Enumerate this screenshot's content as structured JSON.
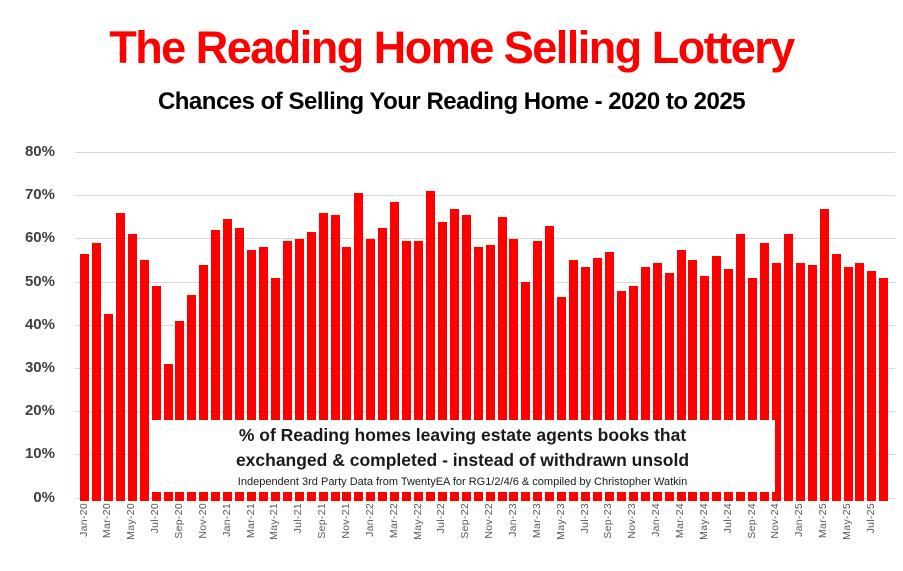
{
  "page": {
    "title": "The Reading Home Selling Lottery",
    "subtitle": "Chances of Selling Your Reading Home - 2020 to 2025"
  },
  "colors": {
    "bar": "#fe0000",
    "title": "#fe0000",
    "subtitle": "#000000",
    "gridline": "#d9d9d9",
    "y_axis_label": "#404040",
    "x_axis_label": "#595959",
    "annotation_background": "#ffffff"
  },
  "annotation": {
    "line1": "% of Reading homes leaving estate agents books that",
    "line2": "exchanged & completed - instead of withdrawn unsold",
    "line3": "Independent 3rd Party Data from TwentyEA for RG1/2/4/6 & compiled by Christopher Watkin"
  },
  "chart_data": {
    "type": "bar",
    "title": "The Reading Home Selling Lottery",
    "subtitle": "Chances of Selling Your Reading Home - 2020 to 2025",
    "unit": "%",
    "ylim": [
      0,
      80
    ],
    "y_tick_step": 10,
    "y_tick_labels": [
      "80%",
      "70%",
      "60%",
      "50%",
      "40%",
      "30%",
      "20%",
      "10%",
      "0%"
    ],
    "grid": true,
    "legend": "none",
    "bar_color": "#fe0000",
    "categories": [
      "Jan-20",
      "Feb-20",
      "Mar-20",
      "Apr-20",
      "May-20",
      "Jun-20",
      "Jul-20",
      "Aug-20",
      "Sep-20",
      "Oct-20",
      "Nov-20",
      "Dec-20",
      "Jan-21",
      "Feb-21",
      "Mar-21",
      "Apr-21",
      "May-21",
      "Jun-21",
      "Jul-21",
      "Aug-21",
      "Sep-21",
      "Oct-21",
      "Nov-21",
      "Dec-21",
      "Jan-22",
      "Feb-22",
      "Mar-22",
      "Apr-22",
      "May-22",
      "Jun-22",
      "Jul-22",
      "Aug-22",
      "Sep-22",
      "Oct-22",
      "Nov-22",
      "Dec-22",
      "Jan-23",
      "Feb-23",
      "Mar-23",
      "Apr-23",
      "May-23",
      "Jun-23",
      "Jul-23",
      "Aug-23",
      "Sep-23",
      "Oct-23",
      "Nov-23",
      "Dec-23",
      "Jan-24",
      "Feb-24",
      "Mar-24",
      "Apr-24",
      "May-24",
      "Jun-24",
      "Jul-24",
      "Aug-24",
      "Sep-24",
      "Oct-24",
      "Nov-24",
      "Dec-24",
      "Jan-25",
      "Feb-25",
      "Mar-25",
      "Apr-25",
      "May-25",
      "Jun-25",
      "Jul-25",
      "Aug-25"
    ],
    "values": [
      56.5,
      59,
      42.5,
      66,
      61,
      55,
      49,
      31,
      41,
      47,
      54,
      62,
      64.5,
      62.5,
      57.5,
      58,
      51,
      59.5,
      60,
      61.5,
      66,
      65.5,
      58,
      70.5,
      60,
      62.5,
      68.5,
      59.5,
      59.5,
      71,
      64,
      67,
      65.5,
      58,
      58.5,
      65,
      60,
      50,
      59.5,
      63,
      46.5,
      55,
      53.5,
      55.5,
      57,
      48,
      49,
      53.5,
      54.5,
      52,
      57.5,
      55,
      51.5,
      56,
      53,
      61,
      51,
      59,
      54.5,
      61,
      54.5,
      54,
      67,
      56.5,
      53.5,
      54.5,
      52.5,
      51
    ],
    "x_tick_every": 2,
    "x_tick_labels_shown": [
      "Jan-20",
      "Mar-20",
      "May-20",
      "Jul-20",
      "Sep-20",
      "Nov-20",
      "Jan-21",
      "Mar-21",
      "May-21",
      "Jul-21",
      "Sep-21",
      "Nov-21",
      "Jan-22",
      "Mar-22",
      "May-22",
      "Jul-22",
      "Sep-22",
      "Nov-22",
      "Jan-23",
      "Mar-23",
      "May-23",
      "Jul-23",
      "Sep-23",
      "Nov-23",
      "Jan-24",
      "Mar-24",
      "May-24",
      "Jul-24",
      "Sep-24",
      "Nov-24",
      "Jan-25",
      "Mar-25",
      "May-25",
      "Jul-25"
    ]
  }
}
